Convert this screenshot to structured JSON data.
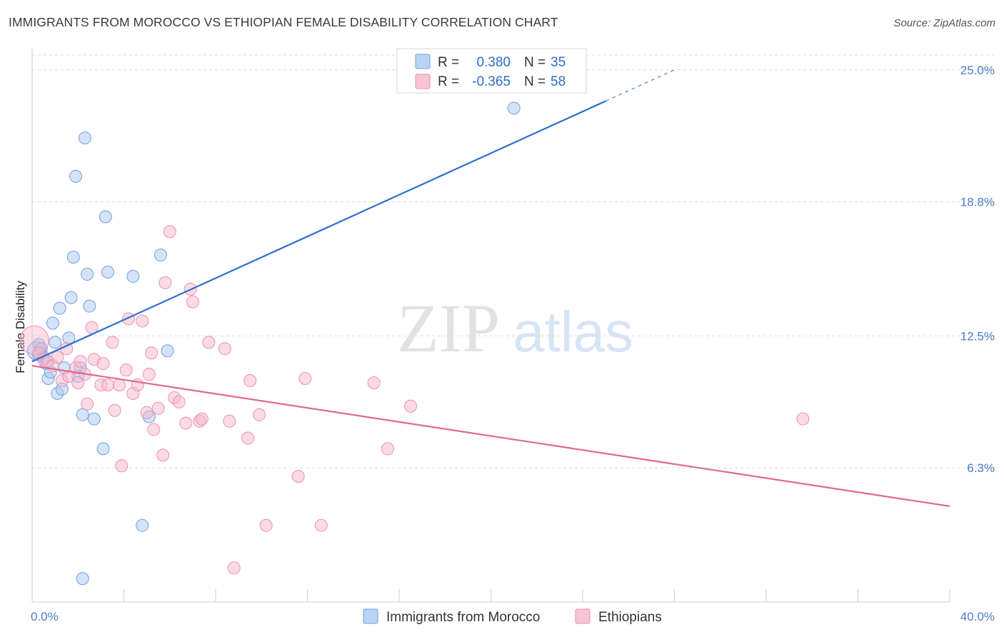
{
  "header": {
    "title": "IMMIGRANTS FROM MOROCCO VS ETHIOPIAN FEMALE DISABILITY CORRELATION CHART",
    "source": "Source: ZipAtlas.com"
  },
  "watermark": {
    "zip": "ZIP",
    "atlas": "atlas"
  },
  "legend": {
    "rows": [
      {
        "r_label": "R =",
        "r_value": "0.380",
        "n_label": "N =",
        "n_value": "35",
        "color": "#a9c8f2"
      },
      {
        "r_label": "R =",
        "r_value": "-0.365",
        "n_label": "N =",
        "n_value": "58",
        "color": "#f5b8cb"
      }
    ]
  },
  "chart_data": {
    "type": "scatter",
    "title": "IMMIGRANTS FROM MOROCCO VS ETHIOPIAN FEMALE DISABILITY CORRELATION CHART",
    "xlabel": "",
    "ylabel": "Female Disability",
    "xlim": [
      0,
      40
    ],
    "ylim": [
      0,
      26
    ],
    "x_tick_labels": [
      "0.0%",
      "40.0%"
    ],
    "y_ticks": [
      6.3,
      12.5,
      18.8,
      25.0
    ],
    "y_tick_labels": [
      "6.3%",
      "12.5%",
      "18.8%",
      "25.0%"
    ],
    "series": [
      {
        "name": "Immigrants from Morocco",
        "color": "#a9c8f2",
        "stroke": "#6f9fe0",
        "line_color": "#2b6fce",
        "trend": {
          "x0": 0.0,
          "y0": 11.3,
          "x1": 28.0,
          "y1": 25.0,
          "solid_until_x": 25.0
        },
        "points": [
          [
            0.2,
            11.8
          ],
          [
            0.3,
            12.1
          ],
          [
            0.3,
            11.6
          ],
          [
            0.4,
            11.9
          ],
          [
            0.5,
            11.5
          ],
          [
            0.6,
            11.2
          ],
          [
            0.7,
            10.5
          ],
          [
            0.8,
            10.8
          ],
          [
            0.9,
            13.1
          ],
          [
            1.0,
            12.2
          ],
          [
            1.1,
            9.8
          ],
          [
            1.2,
            13.8
          ],
          [
            1.3,
            10.0
          ],
          [
            1.4,
            11.0
          ],
          [
            1.6,
            12.4
          ],
          [
            1.7,
            14.3
          ],
          [
            1.8,
            16.2
          ],
          [
            1.9,
            20.0
          ],
          [
            2.0,
            10.6
          ],
          [
            2.1,
            11.0
          ],
          [
            2.2,
            8.8
          ],
          [
            2.3,
            21.8
          ],
          [
            2.4,
            15.4
          ],
          [
            2.5,
            13.9
          ],
          [
            2.7,
            8.6
          ],
          [
            3.1,
            7.2
          ],
          [
            3.2,
            18.1
          ],
          [
            3.3,
            15.5
          ],
          [
            4.4,
            15.3
          ],
          [
            4.8,
            3.6
          ],
          [
            5.1,
            8.7
          ],
          [
            5.6,
            16.3
          ],
          [
            5.9,
            11.8
          ],
          [
            2.2,
            1.1
          ],
          [
            21.0,
            23.2
          ]
        ]
      },
      {
        "name": "Ethiopians",
        "color": "#f5b8cb",
        "stroke": "#eb8fb0",
        "line_color": "#e06890",
        "trend": {
          "x0": 0.0,
          "y0": 11.1,
          "x1": 40.0,
          "y1": 4.5,
          "solid_until_x": 40.0
        },
        "points": [
          [
            0.1,
            12.3
          ],
          [
            0.3,
            11.7
          ],
          [
            0.5,
            11.4
          ],
          [
            0.7,
            11.3
          ],
          [
            0.9,
            11.1
          ],
          [
            1.1,
            11.5
          ],
          [
            1.3,
            10.4
          ],
          [
            1.5,
            11.9
          ],
          [
            1.6,
            10.6
          ],
          [
            1.9,
            11.0
          ],
          [
            2.0,
            10.3
          ],
          [
            2.1,
            11.3
          ],
          [
            2.3,
            10.7
          ],
          [
            2.4,
            9.3
          ],
          [
            2.6,
            12.9
          ],
          [
            2.7,
            11.4
          ],
          [
            3.0,
            10.2
          ],
          [
            3.1,
            11.2
          ],
          [
            3.3,
            10.2
          ],
          [
            3.5,
            12.2
          ],
          [
            3.6,
            9.0
          ],
          [
            3.8,
            10.2
          ],
          [
            3.9,
            6.4
          ],
          [
            4.1,
            10.9
          ],
          [
            4.2,
            13.3
          ],
          [
            4.4,
            9.8
          ],
          [
            4.6,
            10.2
          ],
          [
            4.8,
            13.2
          ],
          [
            5.0,
            8.9
          ],
          [
            5.1,
            10.7
          ],
          [
            5.2,
            11.7
          ],
          [
            5.3,
            8.1
          ],
          [
            5.5,
            9.1
          ],
          [
            5.7,
            6.9
          ],
          [
            5.8,
            15.0
          ],
          [
            6.0,
            17.4
          ],
          [
            6.2,
            9.6
          ],
          [
            6.4,
            9.4
          ],
          [
            6.7,
            8.4
          ],
          [
            6.9,
            14.7
          ],
          [
            7.0,
            14.1
          ],
          [
            7.3,
            8.5
          ],
          [
            7.4,
            8.6
          ],
          [
            7.7,
            12.2
          ],
          [
            8.4,
            11.9
          ],
          [
            8.6,
            8.5
          ],
          [
            9.4,
            7.7
          ],
          [
            9.5,
            10.4
          ],
          [
            9.9,
            8.8
          ],
          [
            10.2,
            3.6
          ],
          [
            11.6,
            5.9
          ],
          [
            11.9,
            10.5
          ],
          [
            12.6,
            3.6
          ],
          [
            14.9,
            10.3
          ],
          [
            15.5,
            7.2
          ],
          [
            16.5,
            9.2
          ],
          [
            33.6,
            8.6
          ],
          [
            8.8,
            1.6
          ]
        ]
      }
    ]
  },
  "bottom_legend": {
    "items": [
      {
        "label": "Immigrants from Morocco",
        "color": "#a9c8f2",
        "stroke": "#6f9fe0"
      },
      {
        "label": "Ethiopians",
        "color": "#f5b8cb",
        "stroke": "#eb8fb0"
      }
    ]
  }
}
